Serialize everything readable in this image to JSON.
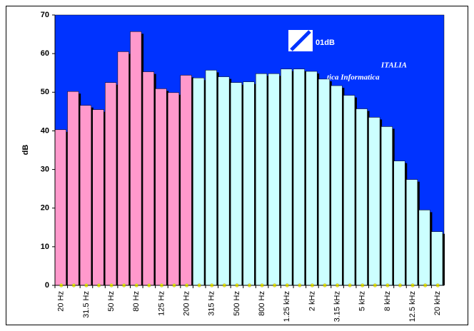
{
  "chart_data": {
    "type": "bar",
    "ylabel": "dB",
    "categories": [
      "20 Hz",
      null,
      "31.5 Hz",
      null,
      "50 Hz",
      null,
      "80 Hz",
      null,
      "125 Hz",
      null,
      "200 Hz",
      null,
      "315 Hz",
      null,
      "500 Hz",
      null,
      "800 Hz",
      null,
      "1.25 kHz",
      null,
      "2 kHz",
      null,
      "3.15 kHz",
      null,
      "5 kHz",
      null,
      "8 kHz",
      null,
      "12.5 kHz",
      null,
      "20 kHz"
    ],
    "series": [
      {
        "color": "#ff99cc",
        "values": [
          40.3,
          50.2,
          46.6,
          45.5,
          52.5,
          60.5,
          65.7,
          55.3,
          50.9,
          49.9,
          54.4,
          null,
          null,
          null,
          null,
          null,
          null,
          null,
          null,
          null,
          null,
          null,
          null,
          null,
          null,
          null,
          null,
          null,
          null,
          null,
          null
        ]
      },
      {
        "color": "#ccffff",
        "values": [
          null,
          null,
          null,
          null,
          null,
          null,
          null,
          null,
          null,
          null,
          null,
          53.7,
          55.7,
          54.0,
          52.5,
          52.7,
          54.8,
          54.8,
          56.0,
          56.0,
          55.4,
          53.4,
          51.7,
          49.2,
          45.7,
          43.5,
          41.1,
          32.2,
          27.4,
          19.5,
          13.9
        ]
      }
    ],
    "ylim": [
      0,
      70
    ],
    "yticks": [
      0,
      10,
      20,
      30,
      40,
      50,
      60,
      70
    ],
    "background": "#0033ff",
    "logo": {
      "name": "01dB",
      "sub": "ITALIA",
      "tagline": "tica Informatica"
    }
  }
}
